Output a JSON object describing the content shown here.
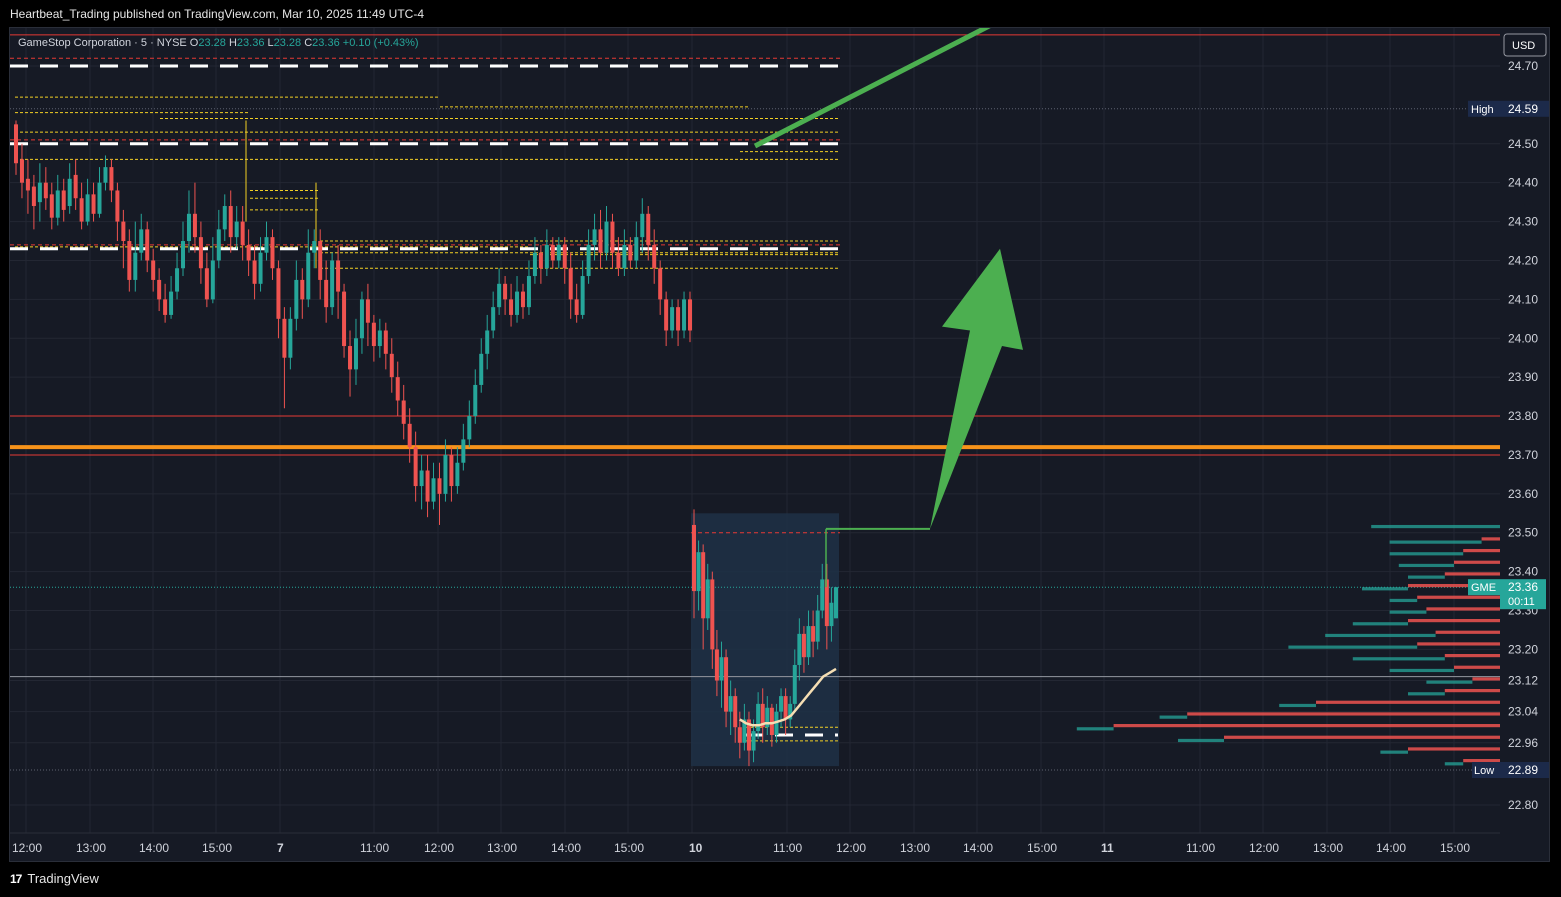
{
  "header": {
    "published_line": "Heartbeat_Trading published on TradingView.com, Mar 10, 2025 11:49 UTC-4"
  },
  "footer": {
    "logo_icon": "tradingview-logo-icon",
    "brand": "TradingView"
  },
  "colors": {
    "background": "#161a25",
    "up": "#26a69a",
    "down": "#ef5350",
    "orange_line": "#f7931a",
    "red_line": "#e53935",
    "arrow": "#4caf50",
    "vwap": "#f5deb3"
  },
  "chart_data": {
    "type": "candlestick",
    "symbol_line": {
      "name": "GameStop Corporation · 5 · NYSE",
      "o_label": "O",
      "o": "23.28",
      "h_label": "H",
      "h": "23.36",
      "l_label": "L",
      "l": "23.28",
      "c_label": "C",
      "c": "23.36",
      "change": "+0.10 (+0.43%)"
    },
    "currency": "USD",
    "y_ticks": [
      "24.70",
      "24.50",
      "24.40",
      "24.30",
      "24.20",
      "24.10",
      "24.00",
      "23.90",
      "23.80",
      "23.70",
      "23.60",
      "23.50",
      "23.40",
      "23.30",
      "23.20",
      "23.12",
      "23.04",
      "22.96",
      "22.80"
    ],
    "x_ticks": [
      "12:00",
      "13:00",
      "14:00",
      "15:00",
      "7",
      "11:00",
      "12:00",
      "13:00",
      "14:00",
      "15:00",
      "10",
      "11:00",
      "12:00",
      "13:00",
      "14:00",
      "15:00",
      "11",
      "11:00",
      "12:00",
      "13:00",
      "14:00",
      "15:00"
    ],
    "high": {
      "label": "High",
      "value": "24.59"
    },
    "low": {
      "label": "Low",
      "value": "22.89"
    },
    "last": {
      "ticker": "GME",
      "price": "23.36",
      "countdown": "00:11"
    },
    "horizontal_levels": [
      {
        "price": 24.78,
        "kind": "red-line"
      },
      {
        "price": 24.7,
        "kind": "dashed-white"
      },
      {
        "price": 24.5,
        "kind": "dashed-white"
      },
      {
        "price": 24.23,
        "kind": "dashed-white"
      },
      {
        "price": 23.8,
        "kind": "red-line"
      },
      {
        "price": 23.72,
        "kind": "orange-thick"
      },
      {
        "price": 23.7,
        "kind": "red-line"
      },
      {
        "price": 23.13,
        "kind": "gray-line"
      },
      {
        "price": 22.98,
        "kind": "dashed-white"
      }
    ],
    "candles": [
      [
        24.55,
        24.45,
        24.56,
        24.42
      ],
      [
        24.46,
        24.4,
        24.5,
        24.36
      ],
      [
        24.41,
        24.38,
        24.46,
        24.32
      ],
      [
        24.39,
        24.34,
        24.42,
        24.28
      ],
      [
        24.35,
        24.4,
        24.45,
        24.3
      ],
      [
        24.4,
        24.36,
        24.44,
        24.33
      ],
      [
        24.37,
        24.31,
        24.4,
        24.28
      ],
      [
        24.31,
        24.38,
        24.42,
        24.29
      ],
      [
        24.38,
        24.33,
        24.41,
        24.3
      ],
      [
        24.34,
        24.41,
        24.45,
        24.32
      ],
      [
        24.42,
        24.36,
        24.46,
        24.33
      ],
      [
        24.36,
        24.3,
        24.4,
        24.28
      ],
      [
        24.3,
        24.37,
        24.41,
        24.29
      ],
      [
        24.37,
        24.32,
        24.4,
        24.3
      ],
      [
        24.32,
        24.4,
        24.44,
        24.31
      ],
      [
        24.4,
        24.44,
        24.47,
        24.38
      ],
      [
        24.44,
        24.38,
        24.46,
        24.35
      ],
      [
        24.38,
        24.3,
        24.4,
        24.25
      ],
      [
        24.3,
        24.25,
        24.33,
        24.18
      ],
      [
        24.25,
        24.15,
        24.28,
        24.12
      ],
      [
        24.15,
        24.22,
        24.3,
        24.12
      ],
      [
        24.22,
        24.28,
        24.32,
        24.2
      ],
      [
        24.28,
        24.2,
        24.3,
        24.17
      ],
      [
        24.2,
        24.15,
        24.23,
        24.12
      ],
      [
        24.15,
        24.1,
        24.18,
        24.07
      ],
      [
        24.1,
        24.06,
        24.14,
        24.04
      ],
      [
        24.06,
        24.12,
        24.16,
        24.05
      ],
      [
        24.12,
        24.18,
        24.22,
        24.1
      ],
      [
        24.18,
        24.25,
        24.3,
        24.16
      ],
      [
        24.25,
        24.32,
        24.38,
        24.22
      ],
      [
        24.32,
        24.26,
        24.4,
        24.22
      ],
      [
        24.26,
        24.18,
        24.3,
        24.14
      ],
      [
        24.18,
        24.1,
        24.22,
        24.08
      ],
      [
        24.1,
        24.2,
        24.26,
        24.09
      ],
      [
        24.2,
        24.28,
        24.33,
        24.18
      ],
      [
        24.28,
        24.34,
        24.37,
        24.25
      ],
      [
        24.34,
        24.26,
        24.38,
        24.22
      ],
      [
        24.26,
        24.3,
        24.34,
        24.23
      ],
      [
        24.3,
        24.24,
        24.34,
        24.2
      ],
      [
        24.24,
        24.2,
        24.28,
        24.16
      ],
      [
        24.2,
        24.14,
        24.24,
        24.1
      ],
      [
        24.14,
        24.22,
        24.26,
        24.12
      ],
      [
        24.22,
        24.26,
        24.3,
        24.2
      ],
      [
        24.26,
        24.18,
        24.28,
        24.15
      ],
      [
        24.18,
        24.05,
        24.2,
        24.0
      ],
      [
        24.05,
        23.95,
        24.08,
        23.82
      ],
      [
        23.95,
        24.05,
        24.08,
        23.92
      ],
      [
        24.05,
        24.15,
        24.2,
        24.02
      ],
      [
        24.15,
        24.1,
        24.18,
        24.05
      ],
      [
        24.1,
        24.22,
        24.28,
        24.08
      ],
      [
        24.22,
        24.25,
        24.28,
        24.18
      ],
      [
        24.25,
        24.15,
        24.28,
        24.1
      ],
      [
        24.15,
        24.08,
        24.2,
        24.04
      ],
      [
        24.08,
        24.2,
        24.22,
        24.06
      ],
      [
        24.2,
        24.12,
        24.24,
        24.05
      ],
      [
        24.12,
        23.98,
        24.14,
        23.95
      ],
      [
        23.98,
        23.92,
        24.02,
        23.85
      ],
      [
        23.92,
        24.0,
        24.05,
        23.88
      ],
      [
        24.0,
        24.1,
        24.12,
        23.96
      ],
      [
        24.1,
        24.04,
        24.14,
        23.98
      ],
      [
        24.04,
        23.98,
        24.06,
        23.94
      ],
      [
        23.98,
        24.02,
        24.05,
        23.95
      ],
      [
        24.02,
        23.96,
        24.04,
        23.92
      ],
      [
        23.96,
        23.9,
        24.0,
        23.86
      ],
      [
        23.9,
        23.84,
        23.94,
        23.8
      ],
      [
        23.84,
        23.78,
        23.88,
        23.74
      ],
      [
        23.78,
        23.72,
        23.82,
        23.68
      ],
      [
        23.72,
        23.62,
        23.76,
        23.58
      ],
      [
        23.62,
        23.66,
        23.7,
        23.56
      ],
      [
        23.66,
        23.58,
        23.7,
        23.54
      ],
      [
        23.58,
        23.64,
        23.68,
        23.56
      ],
      [
        23.64,
        23.6,
        23.68,
        23.52
      ],
      [
        23.6,
        23.7,
        23.74,
        23.58
      ],
      [
        23.7,
        23.62,
        23.72,
        23.58
      ],
      [
        23.62,
        23.68,
        23.72,
        23.6
      ],
      [
        23.68,
        23.74,
        23.78,
        23.66
      ],
      [
        23.74,
        23.8,
        23.84,
        23.72
      ],
      [
        23.8,
        23.88,
        23.92,
        23.78
      ],
      [
        23.88,
        23.96,
        24.0,
        23.86
      ],
      [
        23.96,
        24.02,
        24.06,
        23.92
      ],
      [
        24.02,
        24.08,
        24.12,
        24.0
      ],
      [
        24.08,
        24.14,
        24.18,
        24.06
      ],
      [
        24.14,
        24.1,
        24.16,
        24.06
      ],
      [
        24.1,
        24.06,
        24.14,
        24.03
      ],
      [
        24.06,
        24.12,
        24.16,
        24.04
      ],
      [
        24.12,
        24.08,
        24.14,
        24.05
      ],
      [
        24.08,
        24.16,
        24.2,
        24.06
      ],
      [
        24.16,
        24.22,
        24.26,
        24.14
      ],
      [
        24.22,
        24.18,
        24.24,
        24.14
      ],
      [
        24.18,
        24.24,
        24.28,
        24.16
      ],
      [
        24.24,
        24.2,
        24.26,
        24.18
      ],
      [
        24.2,
        24.24,
        24.26,
        24.18
      ],
      [
        24.24,
        24.18,
        24.26,
        24.14
      ],
      [
        24.18,
        24.1,
        24.22,
        24.05
      ],
      [
        24.1,
        24.06,
        24.14,
        24.04
      ],
      [
        24.06,
        24.16,
        24.2,
        24.05
      ],
      [
        24.16,
        24.24,
        24.28,
        24.14
      ],
      [
        24.24,
        24.28,
        24.32,
        24.2
      ],
      [
        24.28,
        24.22,
        24.33,
        24.18
      ],
      [
        24.22,
        24.3,
        24.34,
        24.2
      ],
      [
        24.3,
        24.22,
        24.32,
        24.18
      ],
      [
        24.22,
        24.18,
        24.26,
        24.16
      ],
      [
        24.18,
        24.24,
        24.28,
        24.16
      ],
      [
        24.24,
        24.2,
        24.26,
        24.18
      ],
      [
        24.2,
        24.26,
        24.3,
        24.18
      ],
      [
        24.26,
        24.32,
        24.36,
        24.22
      ],
      [
        24.32,
        24.24,
        24.34,
        24.2
      ],
      [
        24.24,
        24.18,
        24.28,
        24.14
      ],
      [
        24.18,
        24.1,
        24.2,
        24.06
      ],
      [
        24.1,
        24.02,
        24.12,
        23.98
      ],
      [
        24.02,
        24.08,
        24.1,
        24.0
      ],
      [
        24.08,
        24.02,
        24.1,
        23.98
      ],
      [
        24.02,
        24.1,
        24.12,
        24.0
      ],
      [
        24.1,
        24.02,
        24.12,
        23.99
      ],
      [
        23.52,
        23.35,
        23.56,
        23.28
      ],
      [
        23.35,
        23.45,
        23.48,
        23.3
      ],
      [
        23.45,
        23.28,
        23.47,
        23.2
      ],
      [
        23.28,
        23.38,
        23.42,
        23.25
      ],
      [
        23.38,
        23.2,
        23.4,
        23.15
      ],
      [
        23.2,
        23.12,
        23.25,
        23.08
      ],
      [
        23.12,
        23.18,
        23.22,
        23.05
      ],
      [
        23.18,
        23.04,
        23.2,
        23.0
      ],
      [
        23.04,
        23.08,
        23.12,
        22.98
      ],
      [
        23.08,
        23.0,
        23.1,
        22.96
      ],
      [
        23.0,
        22.96,
        23.04,
        22.92
      ],
      [
        22.96,
        23.02,
        23.06,
        22.94
      ],
      [
        23.02,
        22.94,
        23.04,
        22.9
      ],
      [
        22.94,
        22.99,
        23.02,
        22.91
      ],
      [
        22.99,
        23.06,
        23.09,
        22.97
      ],
      [
        23.06,
        23.0,
        23.1,
        22.96
      ],
      [
        23.0,
        23.05,
        23.08,
        22.98
      ],
      [
        23.05,
        22.98,
        23.06,
        22.95
      ],
      [
        22.98,
        23.04,
        23.06,
        22.96
      ],
      [
        23.04,
        23.08,
        23.1,
        23.0
      ],
      [
        23.08,
        23.02,
        23.1,
        22.98
      ],
      [
        23.02,
        23.06,
        23.08,
        23.0
      ],
      [
        23.06,
        23.16,
        23.2,
        23.04
      ],
      [
        23.16,
        23.24,
        23.28,
        23.12
      ],
      [
        23.24,
        23.18,
        23.26,
        23.14
      ],
      [
        23.18,
        23.26,
        23.3,
        23.16
      ],
      [
        23.26,
        23.22,
        23.3,
        23.18
      ],
      [
        23.22,
        23.3,
        23.34,
        23.2
      ],
      [
        23.3,
        23.38,
        23.42,
        23.28
      ],
      [
        23.38,
        23.26,
        23.42,
        23.2
      ],
      [
        23.26,
        23.32,
        23.36,
        23.22
      ],
      [
        23.28,
        23.36,
        23.36,
        23.28
      ]
    ],
    "vwap": [
      23.02,
      23.01,
      23.005,
      23.005,
      23.01,
      23.01,
      23.015,
      23.02,
      23.03,
      23.05,
      23.07,
      23.09,
      23.11,
      23.13,
      23.14,
      23.15
    ],
    "volume_profile_bins": [
      {
        "price": 23.52,
        "up": 14,
        "down": 0
      },
      {
        "price": 23.48,
        "up": 10,
        "down": 2
      },
      {
        "price": 23.45,
        "up": 8,
        "down": 4
      },
      {
        "price": 23.42,
        "up": 6,
        "down": 5
      },
      {
        "price": 23.39,
        "up": 4,
        "down": 6
      },
      {
        "price": 23.36,
        "up": 5,
        "down": 10
      },
      {
        "price": 23.33,
        "up": 3,
        "down": 9
      },
      {
        "price": 23.3,
        "up": 4,
        "down": 8
      },
      {
        "price": 23.27,
        "up": 6,
        "down": 10
      },
      {
        "price": 23.24,
        "up": 12,
        "down": 7
      },
      {
        "price": 23.21,
        "up": 14,
        "down": 9
      },
      {
        "price": 23.18,
        "up": 10,
        "down": 6
      },
      {
        "price": 23.15,
        "up": 7,
        "down": 5
      },
      {
        "price": 23.12,
        "up": 5,
        "down": 3
      },
      {
        "price": 23.09,
        "up": 4,
        "down": 6
      },
      {
        "price": 23.06,
        "up": 4,
        "down": 20
      },
      {
        "price": 23.03,
        "up": 3,
        "down": 34
      },
      {
        "price": 23.0,
        "up": 4,
        "down": 42
      },
      {
        "price": 22.97,
        "up": 5,
        "down": 30
      },
      {
        "price": 22.94,
        "up": 3,
        "down": 10
      },
      {
        "price": 22.91,
        "up": 2,
        "down": 4
      }
    ]
  }
}
